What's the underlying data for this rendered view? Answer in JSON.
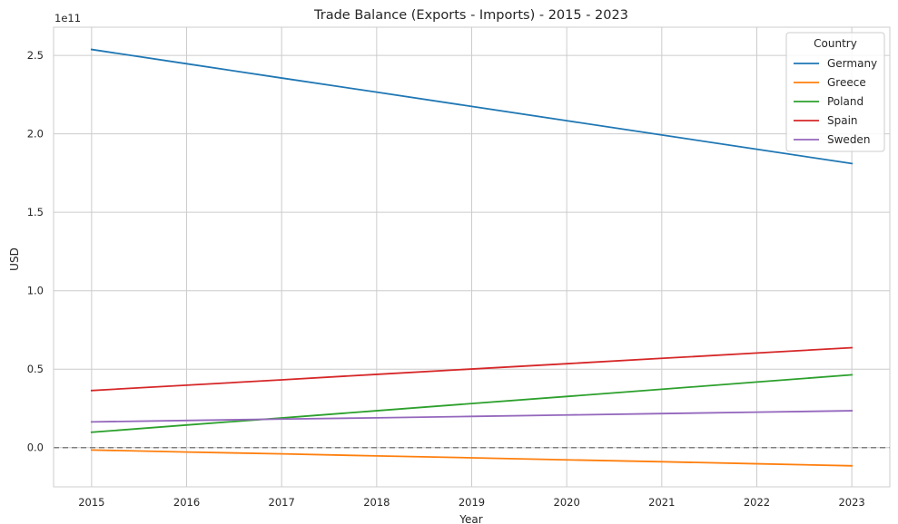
{
  "chart_data": {
    "type": "line",
    "title": "Trade Balance (Exports - Imports) - 2015 - 2023",
    "xlabel": "Year",
    "ylabel": "USD",
    "y_offset_label": "1e11",
    "y_scale": 100000000000,
    "x": [
      2015,
      2016,
      2017,
      2018,
      2019,
      2020,
      2021,
      2022,
      2023
    ],
    "xlim": [
      2014.6,
      2023.4
    ],
    "ylim": [
      -25000000000,
      268000000000
    ],
    "xticks": [
      2015,
      2016,
      2017,
      2018,
      2019,
      2020,
      2021,
      2022,
      2023
    ],
    "yticks": [
      0,
      50000000000,
      100000000000,
      150000000000,
      200000000000,
      250000000000
    ],
    "ytick_labels": [
      "0.0",
      "0.5",
      "1.0",
      "1.5",
      "2.0",
      "2.5"
    ],
    "grid": true,
    "reference_line": {
      "y": 0,
      "style": "dashed",
      "color": "#808080"
    },
    "legend": {
      "title": "Country",
      "placement": "top-right"
    },
    "series": [
      {
        "name": "Germany",
        "color": "#1f77b4",
        "values": [
          253800000000,
          244700000000,
          235600000000,
          226600000000,
          217500000000,
          208400000000,
          199300000000,
          190200000000,
          181100000000
        ]
      },
      {
        "name": "Greece",
        "color": "#ff7f0e",
        "values": [
          -1500000000,
          -2800000000,
          -4000000000,
          -5300000000,
          -6500000000,
          -7800000000,
          -9000000000,
          -10300000000,
          -11600000000
        ]
      },
      {
        "name": "Poland",
        "color": "#2ca02c",
        "values": [
          9800000000,
          14400000000,
          18900000000,
          23500000000,
          28100000000,
          32600000000,
          37200000000,
          41800000000,
          46400000000
        ]
      },
      {
        "name": "Spain",
        "color": "#d62728",
        "values": [
          36400000000,
          39800000000,
          43200000000,
          46700000000,
          50100000000,
          53500000000,
          56900000000,
          60300000000,
          63700000000
        ]
      },
      {
        "name": "Sweden",
        "color": "#9467bd",
        "values": [
          16400000000,
          17300000000,
          18200000000,
          19000000000,
          19900000000,
          20800000000,
          21700000000,
          22600000000,
          23500000000
        ]
      }
    ]
  }
}
